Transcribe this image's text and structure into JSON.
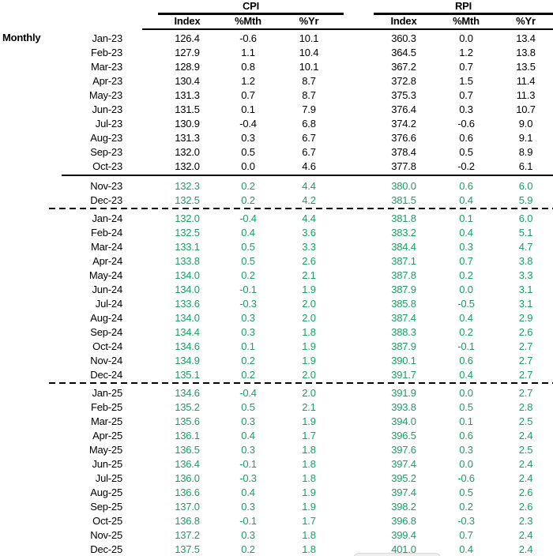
{
  "colors": {
    "actual_text": "#000000",
    "forecast_text": "#1a9e66",
    "line": "#000000",
    "overlay_bg": "#efefef",
    "overlay_border": "#d9d9d9"
  },
  "labels": {
    "monthly": "Monthly"
  },
  "table": {
    "groups": [
      {
        "label": "CPI"
      },
      {
        "label": "RPI"
      }
    ],
    "columns": [
      "Index",
      "%Mth",
      "%Yr"
    ],
    "rows": [
      {
        "month": "Jan-23",
        "cpi": [
          "126.4",
          "-0.6",
          "10.1"
        ],
        "rpi": [
          "360.3",
          "0.0",
          "13.4"
        ],
        "style": "actual"
      },
      {
        "month": "Feb-23",
        "cpi": [
          "127.9",
          "1.1",
          "10.4"
        ],
        "rpi": [
          "364.5",
          "1.2",
          "13.8"
        ],
        "style": "actual"
      },
      {
        "month": "Mar-23",
        "cpi": [
          "128.9",
          "0.8",
          "10.1"
        ],
        "rpi": [
          "367.2",
          "0.7",
          "13.5"
        ],
        "style": "actual"
      },
      {
        "month": "Apr-23",
        "cpi": [
          "130.4",
          "1.2",
          "8.7"
        ],
        "rpi": [
          "372.8",
          "1.5",
          "11.4"
        ],
        "style": "actual"
      },
      {
        "month": "May-23",
        "cpi": [
          "131.3",
          "0.7",
          "8.7"
        ],
        "rpi": [
          "375.3",
          "0.7",
          "11.3"
        ],
        "style": "actual"
      },
      {
        "month": "Jun-23",
        "cpi": [
          "131.5",
          "0.1",
          "7.9"
        ],
        "rpi": [
          "376.4",
          "0.3",
          "10.7"
        ],
        "style": "actual"
      },
      {
        "month": "Jul-23",
        "cpi": [
          "130.9",
          "-0.4",
          "6.8"
        ],
        "rpi": [
          "374.2",
          "-0.6",
          "9.0"
        ],
        "style": "actual"
      },
      {
        "month": "Aug-23",
        "cpi": [
          "131.3",
          "0.3",
          "6.7"
        ],
        "rpi": [
          "376.6",
          "0.6",
          "9.1"
        ],
        "style": "actual"
      },
      {
        "month": "Sep-23",
        "cpi": [
          "132.0",
          "0.5",
          "6.7"
        ],
        "rpi": [
          "378.4",
          "0.5",
          "8.9"
        ],
        "style": "actual"
      },
      {
        "month": "Oct-23",
        "cpi": [
          "132.0",
          "0.0",
          "4.6"
        ],
        "rpi": [
          "377.8",
          "-0.2",
          "6.1"
        ],
        "style": "actual"
      },
      {
        "month": "Nov-23",
        "cpi": [
          "132.3",
          "0.2",
          "4.4"
        ],
        "rpi": [
          "380.0",
          "0.6",
          "6.0"
        ],
        "style": "forecast",
        "sep_before": "solid"
      },
      {
        "month": "Dec-23",
        "cpi": [
          "132.5",
          "0.2",
          "4.2"
        ],
        "rpi": [
          "381.5",
          "0.4",
          "5.9"
        ],
        "style": "forecast"
      },
      {
        "month": "Jan-24",
        "cpi": [
          "132.0",
          "-0.4",
          "4.4"
        ],
        "rpi": [
          "381.8",
          "0.1",
          "6.0"
        ],
        "style": "forecast",
        "sep_before": "dashed"
      },
      {
        "month": "Feb-24",
        "cpi": [
          "132.5",
          "0.4",
          "3.6"
        ],
        "rpi": [
          "383.2",
          "0.4",
          "5.1"
        ],
        "style": "forecast"
      },
      {
        "month": "Mar-24",
        "cpi": [
          "133.1",
          "0.5",
          "3.3"
        ],
        "rpi": [
          "384.4",
          "0.3",
          "4.7"
        ],
        "style": "forecast"
      },
      {
        "month": "Apr-24",
        "cpi": [
          "133.8",
          "0.5",
          "2.6"
        ],
        "rpi": [
          "387.1",
          "0.7",
          "3.8"
        ],
        "style": "forecast"
      },
      {
        "month": "May-24",
        "cpi": [
          "134.0",
          "0.2",
          "2.1"
        ],
        "rpi": [
          "387.8",
          "0.2",
          "3.3"
        ],
        "style": "forecast"
      },
      {
        "month": "Jun-24",
        "cpi": [
          "134.0",
          "-0.1",
          "1.9"
        ],
        "rpi": [
          "387.9",
          "0.0",
          "3.1"
        ],
        "style": "forecast"
      },
      {
        "month": "Jul-24",
        "cpi": [
          "133.6",
          "-0.3",
          "2.0"
        ],
        "rpi": [
          "385.8",
          "-0.5",
          "3.1"
        ],
        "style": "forecast"
      },
      {
        "month": "Aug-24",
        "cpi": [
          "134.0",
          "0.3",
          "2.0"
        ],
        "rpi": [
          "387.4",
          "0.4",
          "2.9"
        ],
        "style": "forecast"
      },
      {
        "month": "Sep-24",
        "cpi": [
          "134.4",
          "0.3",
          "1.8"
        ],
        "rpi": [
          "388.3",
          "0.2",
          "2.6"
        ],
        "style": "forecast"
      },
      {
        "month": "Oct-24",
        "cpi": [
          "134.6",
          "0.1",
          "1.9"
        ],
        "rpi": [
          "387.9",
          "-0.1",
          "2.7"
        ],
        "style": "forecast"
      },
      {
        "month": "Nov-24",
        "cpi": [
          "134.9",
          "0.2",
          "1.9"
        ],
        "rpi": [
          "390.1",
          "0.6",
          "2.7"
        ],
        "style": "forecast"
      },
      {
        "month": "Dec-24",
        "cpi": [
          "135.1",
          "0.2",
          "2.0"
        ],
        "rpi": [
          "391.7",
          "0.4",
          "2.7"
        ],
        "style": "forecast"
      },
      {
        "month": "Jan-25",
        "cpi": [
          "134.6",
          "-0.4",
          "2.0"
        ],
        "rpi": [
          "391.9",
          "0.0",
          "2.7"
        ],
        "style": "forecast",
        "sep_before": "dashed"
      },
      {
        "month": "Feb-25",
        "cpi": [
          "135.2",
          "0.5",
          "2.1"
        ],
        "rpi": [
          "393.8",
          "0.5",
          "2.8"
        ],
        "style": "forecast"
      },
      {
        "month": "Mar-25",
        "cpi": [
          "135.6",
          "0.3",
          "1.9"
        ],
        "rpi": [
          "394.0",
          "0.1",
          "2.5"
        ],
        "style": "forecast"
      },
      {
        "month": "Apr-25",
        "cpi": [
          "136.1",
          "0.4",
          "1.7"
        ],
        "rpi": [
          "396.5",
          "0.6",
          "2.4"
        ],
        "style": "forecast"
      },
      {
        "month": "May-25",
        "cpi": [
          "136.5",
          "0.3",
          "1.8"
        ],
        "rpi": [
          "397.6",
          "0.3",
          "2.5"
        ],
        "style": "forecast"
      },
      {
        "month": "Jun-25",
        "cpi": [
          "136.4",
          "-0.1",
          "1.8"
        ],
        "rpi": [
          "397.4",
          "0.0",
          "2.4"
        ],
        "style": "forecast"
      },
      {
        "month": "Jul-25",
        "cpi": [
          "136.0",
          "-0.3",
          "1.8"
        ],
        "rpi": [
          "395.2",
          "-0.6",
          "2.4"
        ],
        "style": "forecast"
      },
      {
        "month": "Aug-25",
        "cpi": [
          "136.6",
          "0.4",
          "1.9"
        ],
        "rpi": [
          "397.4",
          "0.5",
          "2.6"
        ],
        "style": "forecast"
      },
      {
        "month": "Sep-25",
        "cpi": [
          "137.0",
          "0.3",
          "1.9"
        ],
        "rpi": [
          "398.2",
          "0.2",
          "2.6"
        ],
        "style": "forecast"
      },
      {
        "month": "Oct-25",
        "cpi": [
          "136.8",
          "-0.1",
          "1.7"
        ],
        "rpi": [
          "396.8",
          "-0.3",
          "2.3"
        ],
        "style": "forecast"
      },
      {
        "month": "Nov-25",
        "cpi": [
          "137.2",
          "0.3",
          "1.8"
        ],
        "rpi": [
          "399.4",
          "0.7",
          "2.4"
        ],
        "style": "forecast"
      },
      {
        "month": "Dec-25",
        "cpi": [
          "137.5",
          "0.2",
          "1.8"
        ],
        "rpi": [
          "401.0",
          "0.4",
          "2.4"
        ],
        "style": "forecast"
      }
    ]
  }
}
